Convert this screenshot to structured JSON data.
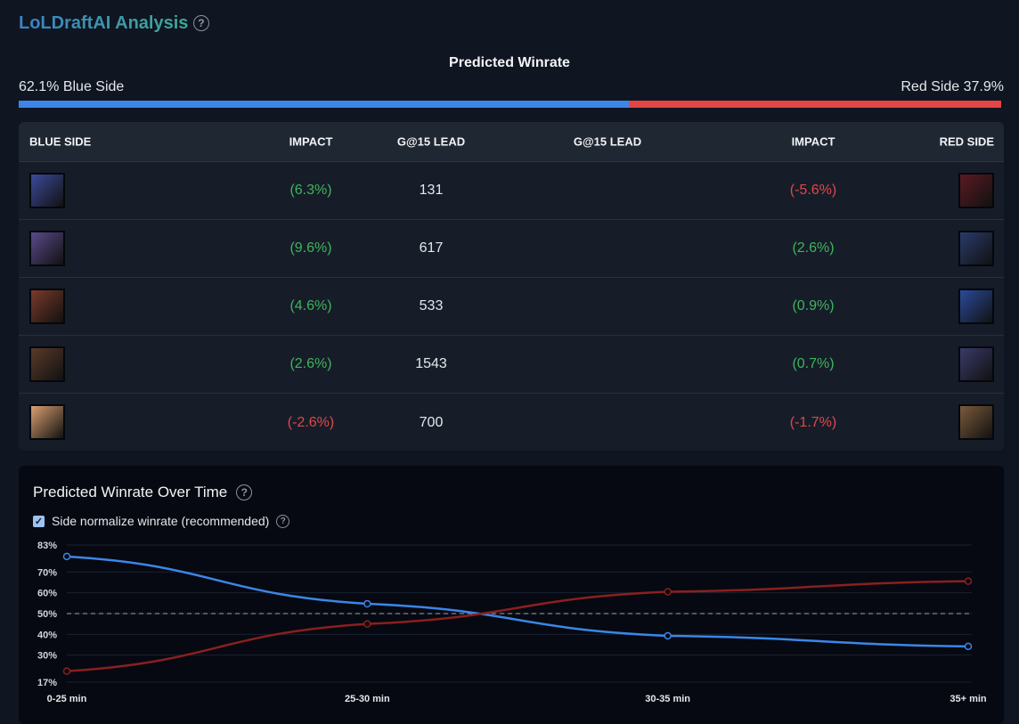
{
  "header": {
    "title": "LoLDraftAI Analysis"
  },
  "winrate": {
    "title": "Predicted Winrate",
    "blue_label": "62.1% Blue Side",
    "red_label": "Red Side 37.9%",
    "blue_pct": 62.1,
    "blue_color": "#3b86e8",
    "red_color": "#e34545"
  },
  "table": {
    "headers": [
      "BLUE SIDE",
      "IMPACT",
      "G@15 LEAD",
      "G@15 LEAD",
      "IMPACT",
      "RED SIDE"
    ],
    "rows": [
      {
        "blue_impact": "(6.3%)",
        "gold": "131",
        "red_impact": "(-5.6%)",
        "blue_icon": "champion-portrait",
        "red_icon": "champion-portrait"
      },
      {
        "blue_impact": "(9.6%)",
        "gold": "617",
        "red_impact": "(2.6%)",
        "blue_icon": "champion-portrait",
        "red_icon": "champion-portrait"
      },
      {
        "blue_impact": "(4.6%)",
        "gold": "533",
        "red_impact": "(0.9%)",
        "blue_icon": "champion-portrait",
        "red_icon": "champion-portrait"
      },
      {
        "blue_impact": "(2.6%)",
        "gold": "1543",
        "red_impact": "(0.7%)",
        "blue_icon": "champion-portrait",
        "red_icon": "champion-portrait"
      },
      {
        "blue_impact": "(-2.6%)",
        "gold": "700",
        "red_impact": "(-1.7%)",
        "blue_icon": "champion-portrait",
        "red_icon": "champion-portrait"
      }
    ]
  },
  "chart": {
    "title": "Predicted Winrate Over Time",
    "checkbox_label": "Side normalize winrate (recommended)",
    "checked": true
  },
  "chart_data": {
    "type": "line",
    "categories": [
      "0-25 min",
      "25-30 min",
      "30-35 min",
      "35+ min"
    ],
    "yticks": [
      "83%",
      "70%",
      "60%",
      "50%",
      "40%",
      "30%",
      "17%"
    ],
    "ytick_values": [
      83,
      70,
      60,
      50,
      40,
      30,
      17
    ],
    "ylim": [
      17,
      83
    ],
    "reference_line": 50,
    "series": [
      {
        "color": "#3b86e8",
        "values": [
          77.5,
          54.7,
          39.3,
          34.2
        ]
      },
      {
        "color": "#8b1f1f",
        "values": [
          22.3,
          45,
          60.5,
          65.6
        ]
      }
    ]
  }
}
